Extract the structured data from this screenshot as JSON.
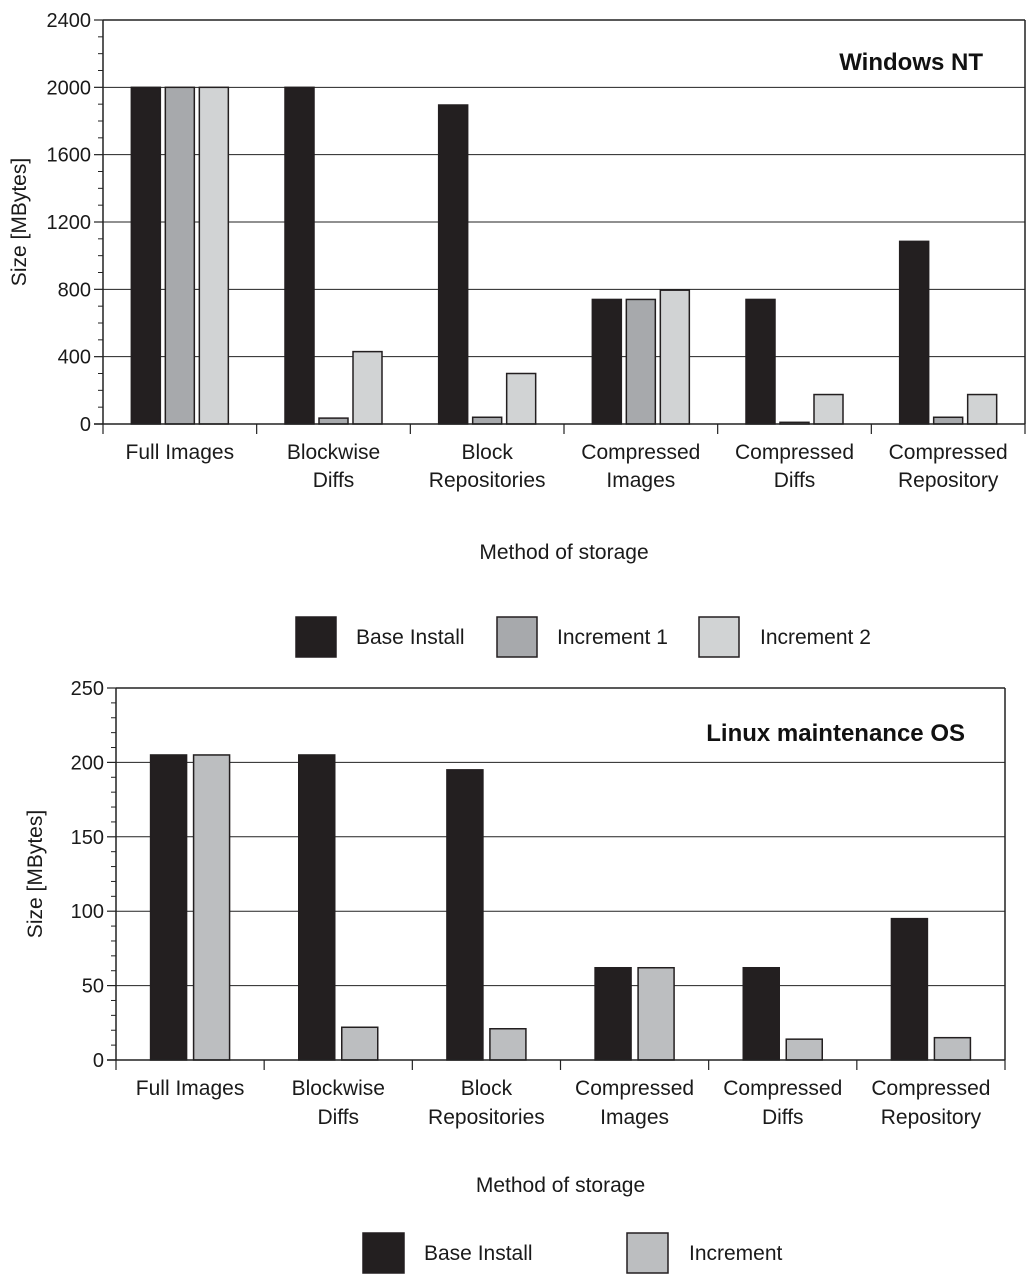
{
  "chart_data": [
    {
      "type": "bar",
      "title": "Windows NT",
      "xlabel": "Method of storage",
      "ylabel": "Size [MBytes]",
      "ylim": [
        0,
        2400
      ],
      "yticks": [
        0,
        400,
        800,
        1200,
        1600,
        2000,
        2400
      ],
      "grid": true,
      "legend_position": "bottom",
      "categories": [
        [
          "Full Images"
        ],
        [
          "Blockwise",
          "Diffs"
        ],
        [
          "Block",
          "Repositories"
        ],
        [
          "Compressed",
          "Images"
        ],
        [
          "Compressed",
          "Diffs"
        ],
        [
          "Compressed",
          "Repository"
        ]
      ],
      "series": [
        {
          "name": "Base Install",
          "color": "#231f20",
          "values": [
            2000,
            2000,
            1895,
            740,
            740,
            1085
          ]
        },
        {
          "name": "Increment 1",
          "color": "#a7a9ac",
          "values": [
            2000,
            35,
            40,
            740,
            10,
            40
          ]
        },
        {
          "name": "Increment 2",
          "color": "#d1d3d4",
          "values": [
            2000,
            430,
            300,
            795,
            175,
            175
          ]
        }
      ]
    },
    {
      "type": "bar",
      "title": "Linux maintenance OS",
      "xlabel": "Method of storage",
      "ylabel": "Size [MBytes]",
      "ylim": [
        0,
        250
      ],
      "yticks": [
        0,
        50,
        100,
        150,
        200,
        250
      ],
      "grid": true,
      "legend_position": "bottom",
      "categories": [
        [
          "Full Images"
        ],
        [
          "Blockwise",
          "Diffs"
        ],
        [
          "Block",
          "Repositories"
        ],
        [
          "Compressed",
          "Images"
        ],
        [
          "Compressed",
          "Diffs"
        ],
        [
          "Compressed",
          "Repository"
        ]
      ],
      "series": [
        {
          "name": "Base Install",
          "color": "#231f20",
          "values": [
            205,
            205,
            195,
            62,
            62,
            95
          ]
        },
        {
          "name": "Increment",
          "color": "#bcbec0",
          "values": [
            205,
            22,
            21,
            62,
            14,
            15
          ]
        }
      ]
    }
  ]
}
